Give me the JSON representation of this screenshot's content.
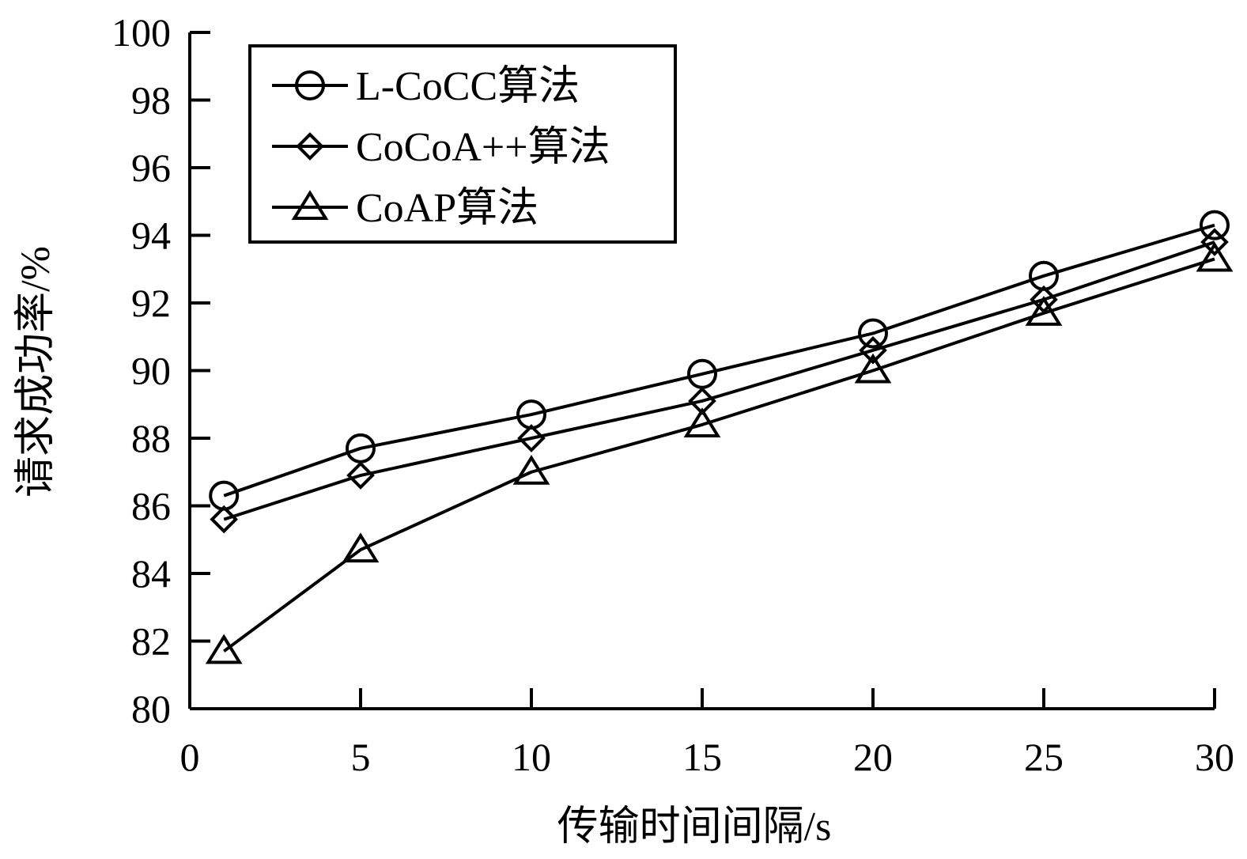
{
  "chart_data": {
    "type": "line",
    "title": "",
    "xlabel": "传输时间间隔/s",
    "ylabel": "请求成功率/%",
    "xlim": [
      0,
      30
    ],
    "ylim": [
      80,
      100
    ],
    "xticks": [
      0,
      5,
      10,
      15,
      20,
      25,
      30
    ],
    "yticks": [
      80,
      82,
      84,
      86,
      88,
      90,
      92,
      94,
      96,
      98,
      100
    ],
    "grid": false,
    "legend_position": "top-left",
    "x": [
      1,
      5,
      10,
      15,
      20,
      25,
      30
    ],
    "series": [
      {
        "name": "L-CoCC算法",
        "marker": "circle",
        "values": [
          86.3,
          87.7,
          88.7,
          89.9,
          91.1,
          92.8,
          94.3
        ]
      },
      {
        "name": "CoCoA++算法",
        "marker": "diamond",
        "values": [
          85.6,
          86.9,
          88.0,
          89.1,
          90.6,
          92.1,
          93.8
        ]
      },
      {
        "name": "CoAP算法",
        "marker": "triangle",
        "values": [
          81.7,
          84.7,
          87.0,
          88.4,
          90.0,
          91.7,
          93.3
        ]
      }
    ],
    "line_color": "#000000"
  }
}
